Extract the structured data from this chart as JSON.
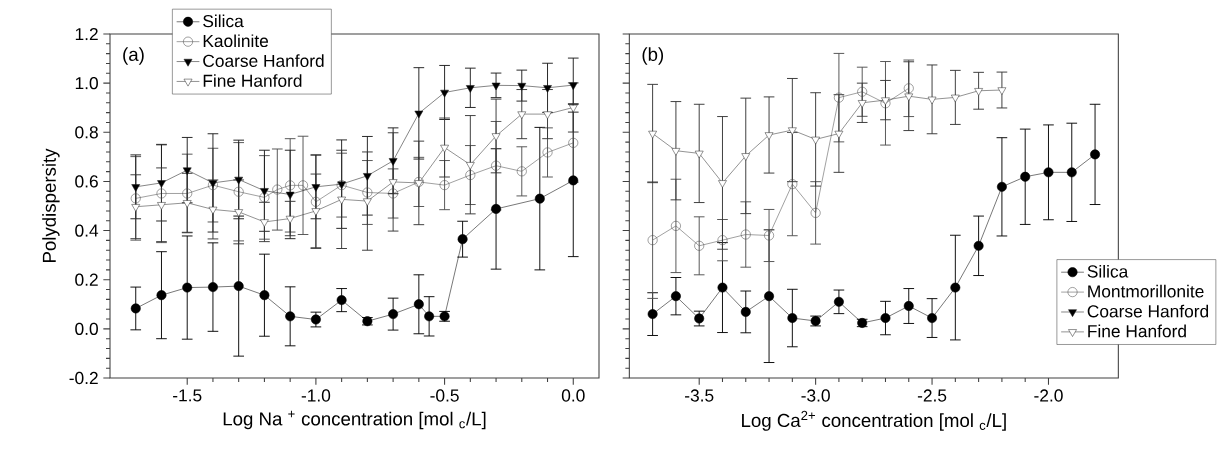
{
  "chart_data": [
    {
      "type": "line",
      "xlabel": "Log Na $^{+}$ concentration [mol $_{c}$/L]",
      "ylabel": "Polydispersity",
      "annotations": [
        "(a)"
      ],
      "xlim": [
        -1.8,
        0.1
      ],
      "xticks": [
        {
          "value": -1.5,
          "label": "-1.5"
        },
        {
          "value": -1.0,
          "label": "-1.0"
        },
        {
          "value": -0.5,
          "label": "-0.5"
        },
        {
          "value": 0.0,
          "label": "0.0"
        }
      ],
      "ylim": [
        -0.2,
        1.2
      ],
      "yticks": [
        {
          "value": -0.2,
          "label": "-0.2"
        },
        {
          "value": 0.0,
          "label": "0.0"
        },
        {
          "value": 0.2,
          "label": "0.2"
        },
        {
          "value": 0.4,
          "label": "0.4"
        },
        {
          "value": 0.6,
          "label": "0.6"
        },
        {
          "value": 0.8,
          "label": "0.8"
        },
        {
          "value": 1.0,
          "label": "1.0"
        },
        {
          "value": 1.2,
          "label": "1.2"
        }
      ],
      "legend": "top left",
      "series": [
        {
          "name": "Silica",
          "color": "#000000",
          "marker": "circle",
          "x": [
            -1.7,
            -1.6,
            -1.5,
            -1.4,
            -1.3,
            -1.2,
            -1.1,
            -1.0,
            -0.9,
            -0.8,
            -0.7,
            -0.6,
            -0.56,
            -0.5,
            -0.43,
            -0.3,
            -0.13,
            0.0
          ],
          "values": [
            0.083,
            0.137,
            0.168,
            0.17,
            0.174,
            0.137,
            0.051,
            0.038,
            0.117,
            0.031,
            0.06,
            0.1,
            0.051,
            0.051,
            0.365,
            0.488,
            0.53,
            0.604
          ],
          "errors": [
            0.087,
            0.177,
            0.21,
            0.18,
            0.285,
            0.167,
            0.12,
            0.03,
            0.047,
            0.015,
            0.065,
            0.12,
            0.08,
            0.02,
            0.073,
            0.245,
            0.29,
            0.31
          ]
        },
        {
          "name": "Kaolinite",
          "color": "#4d4d4d",
          "marker": "circle open",
          "x": [
            -1.7,
            -1.6,
            -1.5,
            -1.4,
            -1.3,
            -1.2,
            -1.15,
            -1.1,
            -1.05,
            -1.0,
            -0.9,
            -0.8,
            -0.7,
            -0.6,
            -0.5,
            -0.4,
            -0.3,
            -0.2,
            -0.1,
            0.0
          ],
          "values": [
            0.531,
            0.551,
            0.551,
            0.585,
            0.558,
            0.535,
            0.567,
            0.584,
            0.584,
            0.517,
            0.585,
            0.555,
            0.551,
            0.598,
            0.585,
            0.626,
            0.664,
            0.641,
            0.718,
            0.757
          ],
          "errors": [
            0.17,
            0.2,
            0.16,
            0.15,
            0.2,
            0.17,
            0.165,
            0.19,
            0.2,
            0.19,
            0.13,
            0.13,
            0.1,
            0.1,
            0.1,
            0.12,
            0.18,
            0.1,
            0.1,
            0.16
          ]
        },
        {
          "name": "Coarse Hanford",
          "color": "#1a1a1a",
          "marker": "triangle down",
          "x": [
            -1.7,
            -1.6,
            -1.5,
            -1.4,
            -1.3,
            -1.2,
            -1.1,
            -1.0,
            -0.9,
            -0.8,
            -0.7,
            -0.6,
            -0.5,
            -0.4,
            -0.3,
            -0.2,
            -0.1,
            0.0
          ],
          "values": [
            0.578,
            0.594,
            0.646,
            0.594,
            0.608,
            0.562,
            0.547,
            0.578,
            0.589,
            0.623,
            0.684,
            0.877,
            0.962,
            0.981,
            0.991,
            0.99,
            0.981,
            0.992
          ],
          "errors": [
            0.13,
            0.155,
            0.133,
            0.2,
            0.16,
            0.165,
            0.18,
            0.13,
            0.18,
            0.16,
            0.134,
            0.186,
            0.11,
            0.08,
            0.05,
            0.063,
            0.1,
            0.11
          ]
        },
        {
          "name": "Fine Hanford",
          "color": "#333333",
          "marker": "triangle down open",
          "x": [
            -1.7,
            -1.6,
            -1.5,
            -1.4,
            -1.3,
            -1.2,
            -1.1,
            -1.0,
            -0.9,
            -0.8,
            -0.7,
            -0.6,
            -0.5,
            -0.4,
            -0.3,
            -0.2,
            -0.1,
            0.0
          ],
          "values": [
            0.497,
            0.505,
            0.513,
            0.486,
            0.476,
            0.435,
            0.449,
            0.48,
            0.527,
            0.52,
            0.598,
            0.594,
            0.738,
            0.668,
            0.785,
            0.874,
            0.874,
            0.901
          ],
          "errors": [
            0.13,
            0.15,
            0.12,
            0.12,
            0.13,
            0.08,
            0.07,
            0.15,
            0.2,
            0.2,
            0.2,
            0.17,
            0.12,
            0.2,
            0.15,
            0.1,
            0.1,
            0.1
          ]
        }
      ]
    },
    {
      "type": "line",
      "xlabel": "Log Ca$^{2+}$ concentration [mol $_{c}$/L]",
      "annotations": [
        "(b)"
      ],
      "xlim": [
        -3.8,
        -1.7
      ],
      "xticks": [
        {
          "value": -3.5,
          "label": "-3.5"
        },
        {
          "value": -3.0,
          "label": "-3.0"
        },
        {
          "value": -2.5,
          "label": "-2.5"
        },
        {
          "value": -2.0,
          "label": "-2.0"
        }
      ],
      "ylim": [
        -0.2,
        1.2
      ],
      "tick_labels": "x",
      "legend": "bottom right",
      "series": [
        {
          "name": "Silica",
          "color": "#000000",
          "marker": "circle",
          "x": [
            -3.7,
            -3.6,
            -3.5,
            -3.4,
            -3.3,
            -3.2,
            -3.1,
            -3.0,
            -2.9,
            -2.8,
            -2.7,
            -2.6,
            -2.5,
            -2.4,
            -2.3,
            -2.2,
            -2.1,
            -2.0,
            -1.9,
            -1.8
          ],
          "values": [
            0.06,
            0.133,
            0.042,
            0.168,
            0.069,
            0.133,
            0.044,
            0.032,
            0.11,
            0.024,
            0.044,
            0.093,
            0.044,
            0.168,
            0.338,
            0.578,
            0.619,
            0.637,
            0.637,
            0.71
          ],
          "errors": [
            0.087,
            0.076,
            0.03,
            0.183,
            0.085,
            0.27,
            0.117,
            0.02,
            0.048,
            0.015,
            0.068,
            0.071,
            0.079,
            0.213,
            0.121,
            0.2,
            0.194,
            0.193,
            0.2,
            0.204
          ]
        },
        {
          "name": "Montmorillonite",
          "color": "#4d4d4d",
          "marker": "circle open",
          "x": [
            -3.7,
            -3.6,
            -3.5,
            -3.4,
            -3.3,
            -3.2,
            -3.1,
            -3.0,
            -2.9,
            -2.8,
            -2.7,
            -2.6
          ],
          "values": [
            0.361,
            0.419,
            0.338,
            0.361,
            0.384,
            0.38,
            0.589,
            0.472,
            0.941,
            0.965,
            0.918,
            0.979
          ],
          "errors": [
            0.237,
            0.19,
            0.118,
            0.084,
            0.133,
            0.106,
            0.21,
            0.127,
            0.18,
            0.1,
            0.17,
            0.115
          ]
        },
        {
          "name": "Coarse Hanford",
          "color": "#1a1a1a",
          "marker": "triangle down"
        },
        {
          "name": "Fine Hanford",
          "color": "#333333",
          "marker": "triangle down open",
          "x": [
            -3.7,
            -3.6,
            -3.5,
            -3.4,
            -3.3,
            -3.2,
            -3.1,
            -3.0,
            -2.9,
            -2.8,
            -2.7,
            -2.6,
            -2.5,
            -2.4,
            -2.3,
            -2.2
          ],
          "values": [
            0.795,
            0.725,
            0.714,
            0.594,
            0.704,
            0.789,
            0.809,
            0.771,
            0.795,
            0.92,
            0.931,
            0.947,
            0.934,
            0.942,
            0.969,
            0.972
          ],
          "errors": [
            0.2,
            0.2,
            0.2,
            0.27,
            0.235,
            0.155,
            0.21,
            0.19,
            0.158,
            0.08,
            0.08,
            0.14,
            0.14,
            0.11,
            0.075,
            0.073
          ]
        }
      ]
    }
  ]
}
